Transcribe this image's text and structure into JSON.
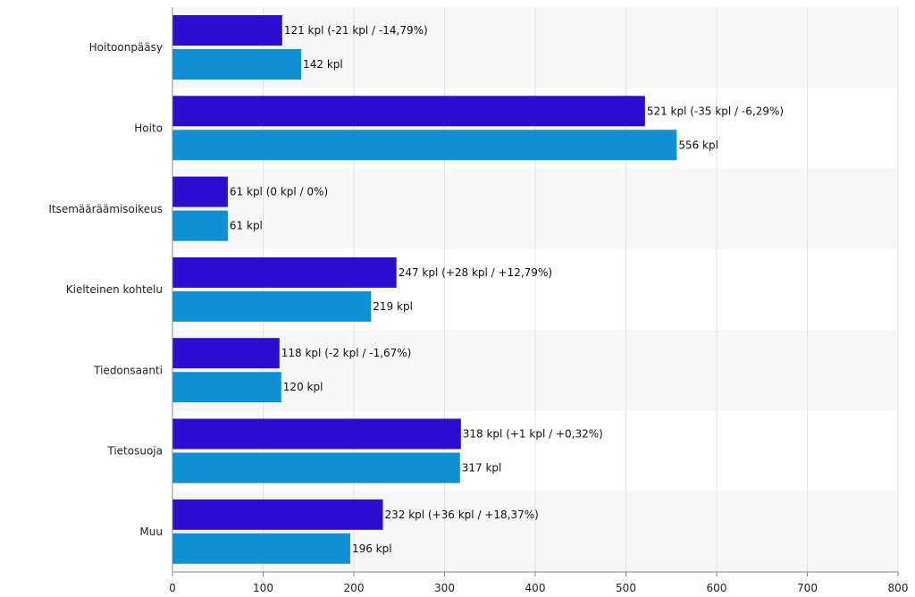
{
  "chart_data": {
    "type": "bar",
    "orientation": "horizontal",
    "categories": [
      "Hoitoonpääsy",
      "Hoito",
      "Itsemääräämisoikeus",
      "Kielteinen kohtelu",
      "Tiedonsaanti",
      "Tietosuoja",
      "Muu"
    ],
    "series": [
      {
        "values": [
          121,
          521,
          61,
          247,
          118,
          318,
          232
        ],
        "labels": [
          "121 kpl (-21 kpl / -14,79%)",
          "521 kpl (-35 kpl / -6,29%)",
          "61 kpl (0 kpl / 0%)",
          "247 kpl (+28 kpl / +12,79%)",
          "118 kpl (-2 kpl / -1,67%)",
          "318 kpl (+1 kpl / +0,32%)",
          "232 kpl (+36 kpl / +18,37%)"
        ],
        "color": "#2c0ccf"
      },
      {
        "values": [
          142,
          556,
          61,
          219,
          120,
          317,
          196
        ],
        "labels": [
          "142 kpl",
          "556 kpl",
          "61 kpl",
          "219 kpl",
          "120 kpl",
          "317 kpl",
          "196 kpl"
        ],
        "color": "#0f8fd4"
      }
    ],
    "xticks": [
      "0",
      "100",
      "200",
      "300",
      "400",
      "500",
      "600",
      "700",
      "800"
    ],
    "xlim": [
      0,
      800
    ],
    "grid": true,
    "title": "",
    "xlabel": "",
    "ylabel": ""
  }
}
